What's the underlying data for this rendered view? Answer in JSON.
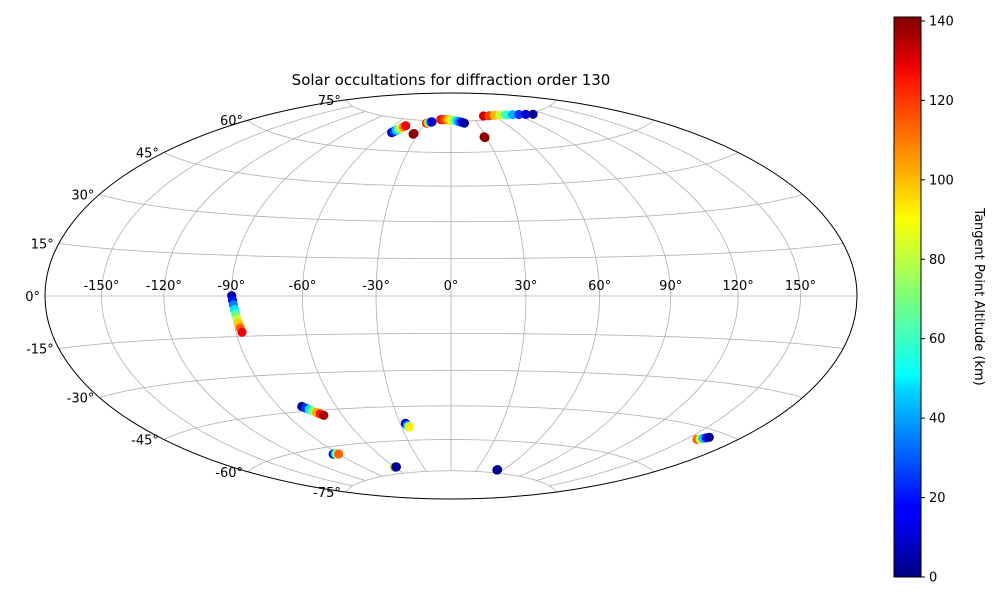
{
  "chart_data": {
    "type": "scatter",
    "projection": "hammer",
    "title": "Solar occultations for diffraction order 130",
    "grid": true,
    "lon_ticks": [
      "-150°",
      "-120°",
      "-90°",
      "-60°",
      "-30°",
      "0°",
      "30°",
      "60°",
      "90°",
      "120°",
      "150°"
    ],
    "lat_ticks": [
      "75°",
      "60°",
      "45°",
      "30°",
      "15°",
      "0°",
      "-15°",
      "-30°",
      "-45°",
      "-60°",
      "-75°"
    ],
    "colorbar": {
      "label": "Tangent Point Altitude (km)",
      "colormap": "jet",
      "range": [
        0,
        141
      ],
      "ticks": [
        "0",
        "20",
        "40",
        "60",
        "80",
        "100",
        "120",
        "140"
      ]
    },
    "tracks": [
      {
        "lon": [
          -54,
          -53,
          -52,
          -51,
          -50,
          -49,
          -48
        ],
        "lat": [
          68.2,
          68.8,
          69.4,
          70.0,
          70.6,
          71.2,
          71.9
        ],
        "alt": [
          5,
          25,
          45,
          65,
          85,
          105,
          125
        ]
      },
      {
        "lon": [
          -28,
          -27.2,
          -26.5,
          -25.7,
          -25,
          -24.2,
          -23.4,
          -22.7
        ],
        "lat": [
          73.8,
          73.9,
          74.0,
          74.1,
          74.2,
          74.3,
          74.4,
          74.5
        ],
        "alt": [
          130,
          115,
          100,
          85,
          65,
          45,
          25,
          10
        ]
      },
      {
        "lon": [
          -13,
          -10.6,
          -8.3,
          -5.9,
          -3.6,
          -1.2,
          1.2,
          3.6,
          6,
          8.3,
          10.7,
          13.1,
          15.5
        ],
        "lat": [
          75.8,
          75.8,
          75.8,
          75.7,
          75.7,
          75.6,
          75.5,
          75.4,
          75.2,
          75.0,
          74.7,
          74.4,
          74.0
        ],
        "alt": [
          125,
          120,
          115,
          108,
          100,
          95,
          85,
          75,
          60,
          45,
          30,
          15,
          5
        ]
      },
      {
        "lon": [
          46,
          53.8,
          61.5,
          69.3,
          77,
          84.8,
          92.5,
          100.3,
          108
        ],
        "lat": [
          77.0,
          76.9,
          76.8,
          76.6,
          76.3,
          75.9,
          75.5,
          75.0,
          74.4
        ],
        "alt": [
          130,
          115,
          98,
          80,
          60,
          42,
          25,
          12,
          3
        ]
      },
      {
        "lon": [
          -34.0,
          -33.6
        ],
        "lat": [
          68.2,
          68.5
        ],
        "alt": [
          141,
          138
        ]
      },
      {
        "lon": [
          28.8,
          28.4
        ],
        "lat": [
          66.7,
          67.0
        ],
        "alt": [
          141,
          139
        ]
      },
      {
        "lon": [
          -89.8,
          -89.5,
          -89.2,
          -88.9,
          -88.6,
          -88.3,
          -88.0,
          -87.7,
          -87.4
        ],
        "lat": [
          0.1,
          -1.6,
          -3.3,
          -5.0,
          -6.7,
          -8.4,
          -10.1,
          -11.8,
          -13.5
        ],
        "alt": [
          3,
          20,
          35,
          50,
          65,
          80,
          95,
          110,
          125
        ]
      },
      {
        "lon": [
          -78,
          -76.7,
          -75.4,
          -74.1,
          -72.8,
          -71.5,
          -70.2
        ],
        "lat": [
          -43.0,
          -43.7,
          -44.4,
          -45.1,
          -45.8,
          -46.5,
          -47.2
        ],
        "alt": [
          3,
          25,
          50,
          75,
          100,
          120,
          135
        ]
      },
      {
        "lon": [
          -94,
          -93,
          -92,
          -91,
          -90
        ],
        "lat": [
          -63.0,
          -63.0,
          -63.1,
          -63.2,
          -63.3
        ],
        "alt": [
          3,
          25,
          55,
          85,
          110
        ]
      },
      {
        "lon": [
          -60.5,
          -59.9,
          -59.3,
          -58.7,
          -58.1
        ],
        "lat": [
          -71.8,
          -71.8,
          -71.8,
          -71.8,
          -71.8
        ],
        "alt": [
          100,
          75,
          45,
          20,
          3
        ]
      },
      {
        "lon": [
          -26.9,
          -26.5,
          -26.1,
          -25.7,
          -25.3
        ],
        "lat": [
          -52.4,
          -52.9,
          -53.3,
          -53.7,
          -54.0
        ],
        "alt": [
          3,
          15,
          35,
          60,
          90
        ]
      },
      {
        "lon": [
          53.5,
          53.2
        ],
        "lat": [
          -73.4,
          -73.6
        ],
        "alt": [
          3,
          3
        ]
      },
      {
        "lon": [
          156.5,
          157.7,
          158.9,
          160.1,
          161.3
        ],
        "lat": [
          -48.8,
          -48.4,
          -48.0,
          -47.6,
          -47.2
        ],
        "alt": [
          110,
          80,
          45,
          20,
          3
        ]
      }
    ]
  }
}
